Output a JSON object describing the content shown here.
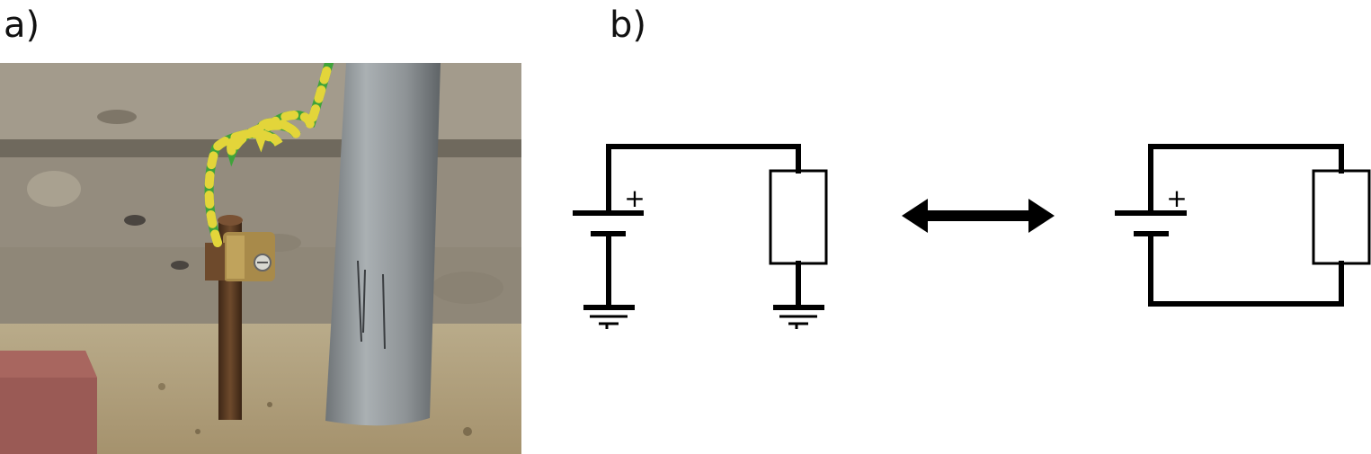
{
  "panels": {
    "a": {
      "label": "a)"
    },
    "b": {
      "label": "b)"
    }
  },
  "circuit_left": {
    "battery_polarity": "+"
  },
  "circuit_right": {
    "battery_polarity": "+"
  },
  "colors": {
    "wire": "#000000",
    "ground_wire_green": "#3fa33a",
    "ground_wire_yellow": "#e3d53a",
    "ground_rod": "#5b3a22",
    "clamp_brass": "#a88a4a",
    "pole": "#8e9396",
    "wall": "#9a9386",
    "paver": "#9a5a55"
  },
  "icons": [
    "ground-symbol-icon",
    "battery-icon",
    "resistor-icon",
    "double-arrow-icon"
  ]
}
